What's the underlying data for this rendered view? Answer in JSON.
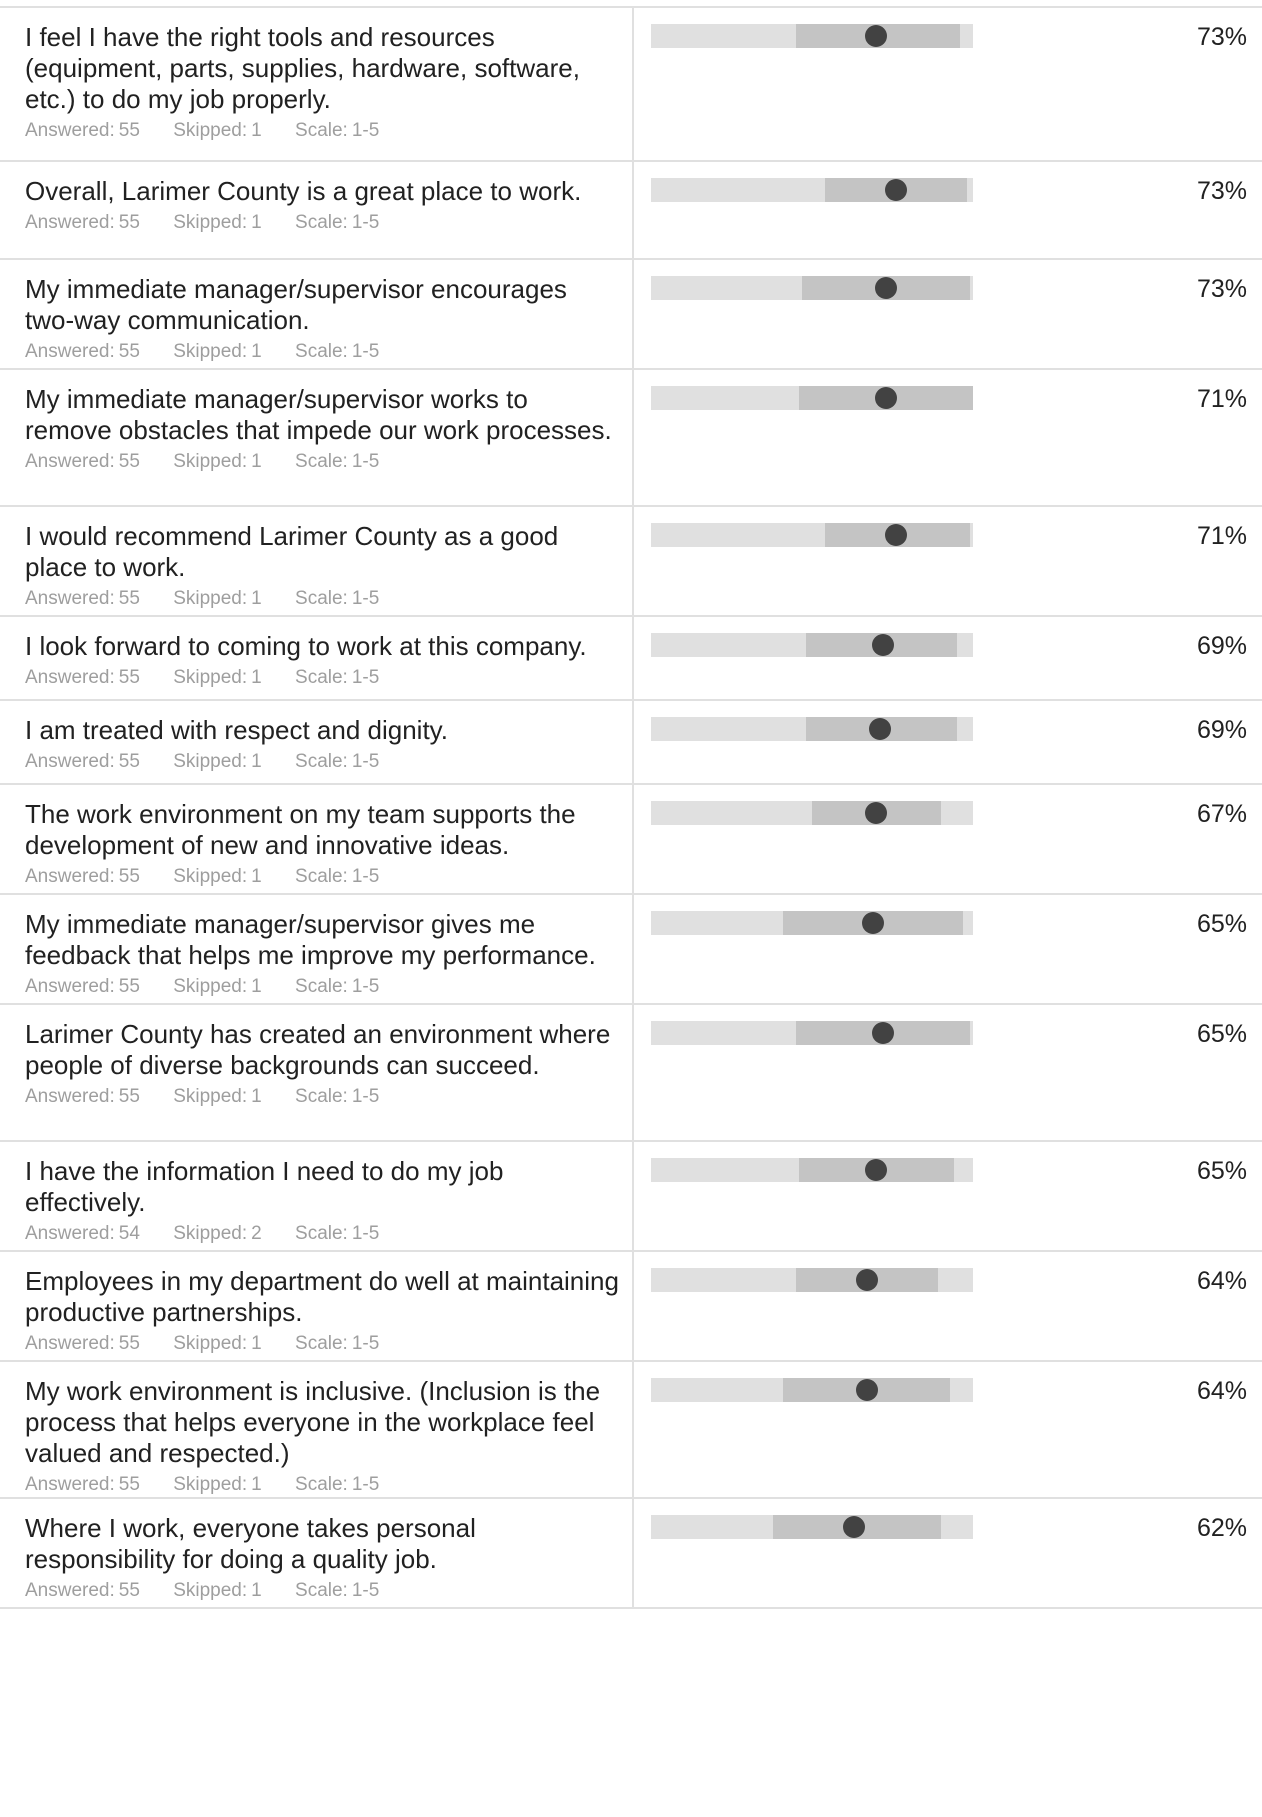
{
  "meta_labels": {
    "answered": "Answered:",
    "skipped": "Skipped:",
    "scale": "Scale:"
  },
  "questions": [
    {
      "text": "I feel I have the right tools and resources (equipment, parts, supplies, hardware, software, etc.) to do my job properly.",
      "answered": "55",
      "skipped": "1",
      "scale": "1-5",
      "percent": "73%",
      "range": [
        0.45,
        0.96
      ],
      "dot": 0.7
    },
    {
      "text": "Overall, Larimer County is a great place to work.",
      "answered": "55",
      "skipped": "1",
      "scale": "1-5",
      "percent": "73%",
      "range": [
        0.54,
        0.98
      ],
      "dot": 0.76
    },
    {
      "text": "My immediate manager/supervisor encourages two-way communication.",
      "answered": "55",
      "skipped": "1",
      "scale": "1-5",
      "percent": "73%",
      "range": [
        0.47,
        0.99
      ],
      "dot": 0.73
    },
    {
      "text": "My immediate manager/supervisor works to remove obstacles that impede our work processes.",
      "answered": "55",
      "skipped": "1",
      "scale": "1-5",
      "percent": "71%",
      "range": [
        0.46,
        1.0
      ],
      "dot": 0.73
    },
    {
      "text": "I would recommend Larimer County as a good place to work.",
      "answered": "55",
      "skipped": "1",
      "scale": "1-5",
      "percent": "71%",
      "range": [
        0.54,
        0.99
      ],
      "dot": 0.76
    },
    {
      "text": "I look forward to coming to work at this company.",
      "answered": "55",
      "skipped": "1",
      "scale": "1-5",
      "percent": "69%",
      "range": [
        0.48,
        0.95
      ],
      "dot": 0.72
    },
    {
      "text": "I am treated with respect and dignity.",
      "answered": "55",
      "skipped": "1",
      "scale": "1-5",
      "percent": "69%",
      "range": [
        0.48,
        0.95
      ],
      "dot": 0.71
    },
    {
      "text": "The work environment on my team supports the development of new and innovative ideas.",
      "answered": "55",
      "skipped": "1",
      "scale": "1-5",
      "percent": "67%",
      "range": [
        0.5,
        0.9
      ],
      "dot": 0.7
    },
    {
      "text": "My immediate manager/supervisor gives me feedback that helps me improve my performance.",
      "answered": "55",
      "skipped": "1",
      "scale": "1-5",
      "percent": "65%",
      "range": [
        0.41,
        0.97
      ],
      "dot": 0.69
    },
    {
      "text": "Larimer County has created an environment where people of diverse backgrounds can succeed.",
      "answered": "55",
      "skipped": "1",
      "scale": "1-5",
      "percent": "65%",
      "range": [
        0.45,
        0.99
      ],
      "dot": 0.72
    },
    {
      "text": "I have the information I need to do my job effectively.",
      "answered": "54",
      "skipped": "2",
      "scale": "1-5",
      "percent": "65%",
      "range": [
        0.46,
        0.94
      ],
      "dot": 0.7
    },
    {
      "text": "Employees in my department do well at maintaining productive partnerships.",
      "answered": "55",
      "skipped": "1",
      "scale": "1-5",
      "percent": "64%",
      "range": [
        0.45,
        0.89
      ],
      "dot": 0.67
    },
    {
      "text": "My work environment is inclusive. (Inclusion is the process that helps everyone in the workplace feel valued and respected.)",
      "answered": "55",
      "skipped": "1",
      "scale": "1-5",
      "percent": "64%",
      "range": [
        0.41,
        0.93
      ],
      "dot": 0.67
    },
    {
      "text": "Where I work, everyone takes personal responsibility for doing a quality job.",
      "answered": "55",
      "skipped": "1",
      "scale": "1-5",
      "percent": "62%",
      "range": [
        0.38,
        0.9
      ],
      "dot": 0.63
    }
  ]
}
